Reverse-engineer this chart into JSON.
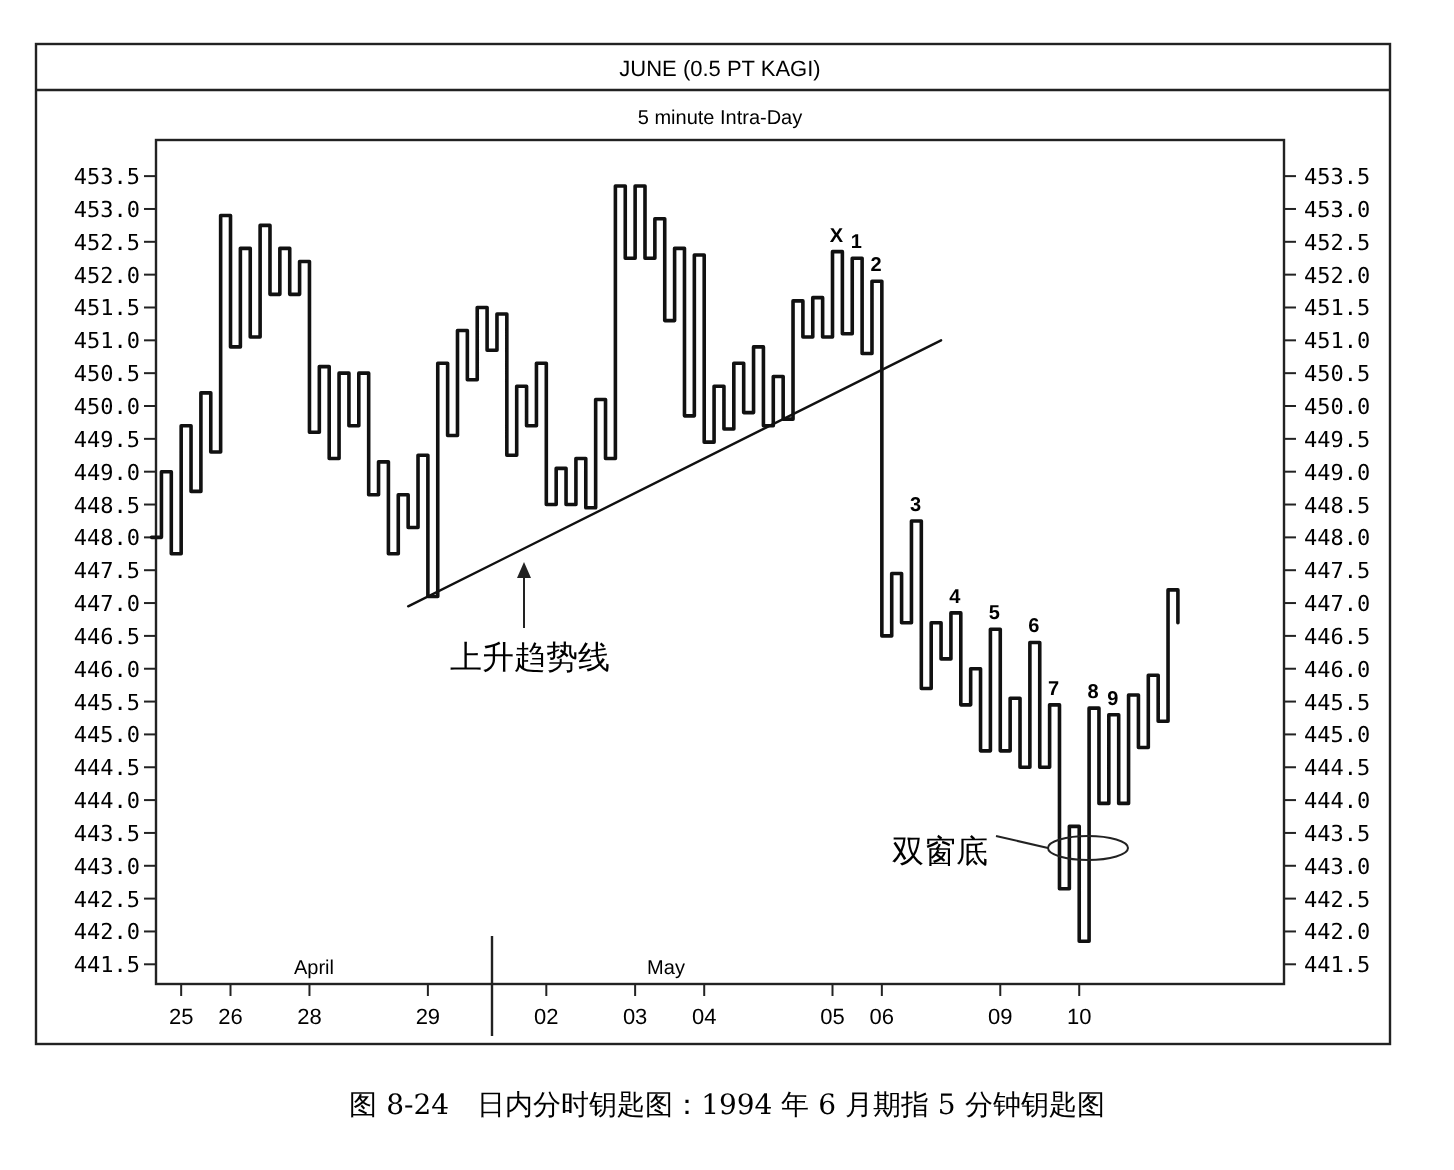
{
  "chart_data": {
    "type": "step",
    "title": "JUNE (0.5 PT KAGI)",
    "subtitle": "5 minute Intra-Day",
    "categories": [
      null,
      null,
      null,
      "25",
      null,
      null,
      null,
      null,
      "26",
      null,
      null,
      null,
      null,
      null,
      null,
      null,
      "28",
      null,
      null,
      null,
      null,
      null,
      null,
      null,
      null,
      null,
      null,
      null,
      "29",
      null,
      null,
      null,
      null,
      null,
      null,
      null,
      null,
      null,
      null,
      null,
      "02",
      null,
      null,
      null,
      null,
      null,
      null,
      null,
      null,
      "03",
      null,
      null,
      null,
      null,
      null,
      null,
      "04",
      null,
      null,
      null,
      null,
      null,
      null,
      null,
      null,
      null,
      null,
      null,
      null,
      "05",
      null,
      null,
      null,
      null,
      "06",
      null,
      null,
      null,
      null,
      null,
      null,
      null,
      null,
      null,
      null,
      null,
      "09",
      null,
      null,
      null,
      null,
      null,
      null,
      null,
      "10",
      null,
      null,
      null,
      null,
      null,
      null,
      null,
      null,
      null,
      null
    ],
    "series": [
      {
        "color": "#111111",
        "values": [
          448.0,
          449.0,
          447.75,
          449.7,
          448.7,
          450.2,
          449.3,
          452.9,
          450.9,
          452.4,
          451.05,
          452.75,
          451.7,
          452.4,
          451.7,
          452.2,
          449.6,
          450.6,
          449.2,
          450.5,
          449.7,
          450.5,
          448.65,
          449.15,
          447.75,
          448.65,
          448.15,
          449.25,
          447.1,
          450.65,
          449.55,
          451.15,
          450.4,
          451.5,
          450.85,
          451.4,
          449.25,
          450.3,
          449.7,
          450.65,
          448.5,
          449.05,
          448.5,
          449.2,
          448.45,
          450.1,
          449.2,
          453.35,
          452.25,
          453.35,
          452.25,
          452.85,
          451.3,
          452.4,
          449.85,
          452.3,
          449.45,
          450.3,
          449.65,
          450.65,
          449.9,
          450.9,
          449.7,
          450.45,
          449.8,
          451.6,
          451.05,
          451.65,
          451.05,
          452.35,
          451.1,
          452.25,
          450.8,
          451.9,
          446.5,
          447.45,
          446.7,
          448.25,
          445.7,
          446.7,
          446.15,
          446.85,
          445.45,
          446.0,
          444.75,
          446.6,
          444.75,
          445.55,
          444.5,
          446.4,
          444.5,
          445.45,
          442.65,
          443.6,
          441.85,
          445.4,
          443.95,
          445.3,
          443.95,
          445.6,
          444.8,
          445.9,
          445.2,
          447.2,
          446.7
        ]
      },
      {
        "type": "line",
        "color": "#111111",
        "values": [
          null,
          null,
          null,
          null,
          null,
          null,
          null,
          null,
          null,
          null,
          null,
          null,
          null,
          null,
          null,
          null,
          null,
          null,
          null,
          null,
          null,
          null,
          null,
          null,
          null,
          null,
          446.95,
          null,
          null,
          null,
          null,
          null,
          null,
          null,
          null,
          null,
          null,
          null,
          null,
          null,
          null,
          null,
          null,
          null,
          null,
          null,
          null,
          null,
          null,
          null,
          null,
          null,
          null,
          null,
          null,
          null,
          null,
          null,
          null,
          null,
          null,
          null,
          null,
          null,
          null,
          null,
          null,
          null,
          null,
          null,
          null,
          null,
          null,
          null,
          null,
          null,
          null,
          null,
          null,
          null,
          451.0,
          null,
          null,
          null,
          null,
          null,
          null,
          null,
          null,
          null,
          null,
          null,
          null,
          null,
          null,
          null,
          null,
          null,
          null,
          null,
          null,
          null,
          null,
          null,
          null
        ]
      }
    ],
    "ylim": [
      441.2,
      454.05
    ],
    "yticks": [
      {
        "value": 441.5,
        "label": "441.5"
      },
      {
        "value": 442.0,
        "label": "442.0"
      },
      {
        "value": 442.5,
        "label": "442.5"
      },
      {
        "value": 443.0,
        "label": "443.0"
      },
      {
        "value": 443.5,
        "label": "443.5"
      },
      {
        "value": 444.0,
        "label": "444.0"
      },
      {
        "value": 444.5,
        "label": "444.5"
      },
      {
        "value": 445.0,
        "label": "445.0"
      },
      {
        "value": 445.5,
        "label": "445.5"
      },
      {
        "value": 446.0,
        "label": "446.0"
      },
      {
        "value": 446.5,
        "label": "446.5"
      },
      {
        "value": 447.0,
        "label": "447.0"
      },
      {
        "value": 447.5,
        "label": "447.5"
      },
      {
        "value": 448.0,
        "label": "448.0"
      },
      {
        "value": 448.5,
        "label": "448.5"
      },
      {
        "value": 449.0,
        "label": "449.0"
      },
      {
        "value": 449.5,
        "label": "449.5"
      },
      {
        "value": 450.0,
        "label": "450.0"
      },
      {
        "value": 450.5,
        "label": "450.5"
      },
      {
        "value": 451.0,
        "label": "451.0"
      },
      {
        "value": 451.5,
        "label": "451.5"
      },
      {
        "value": 452.0,
        "label": "452.0"
      },
      {
        "value": 452.5,
        "label": "452.5"
      },
      {
        "value": 453.0,
        "label": "453.0"
      },
      {
        "value": 453.5,
        "label": "453.5"
      }
    ],
    "annotations": [
      "April",
      "May",
      "X",
      "1",
      "2",
      "3",
      "4",
      "5",
      "6",
      "7",
      "8",
      "9",
      "上升趋势线",
      "双窗底",
      "图 8-24　日内分时钥匙图：1994 年 6 月期指 5 分钟钥匙图"
    ]
  }
}
